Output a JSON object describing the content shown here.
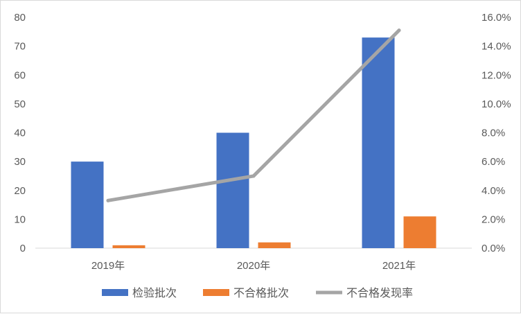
{
  "chart_data": {
    "type": "bar",
    "categories": [
      "2019年",
      "2020年",
      "2021年"
    ],
    "series": [
      {
        "name": "检验批次",
        "kind": "bar",
        "axis": "left",
        "color": "#4472C4",
        "values": [
          30,
          40,
          73
        ]
      },
      {
        "name": "不合格批次",
        "kind": "bar",
        "axis": "left",
        "color": "#ED7D31",
        "values": [
          1,
          2,
          11
        ]
      },
      {
        "name": "不合格发现率",
        "kind": "line",
        "axis": "right",
        "color": "#A5A5A5",
        "values": [
          0.033,
          0.05,
          0.151
        ]
      }
    ],
    "y_left": {
      "min": 0,
      "max": 80,
      "ticks": [
        0,
        10,
        20,
        30,
        40,
        50,
        60,
        70,
        80
      ]
    },
    "y_right": {
      "min": 0,
      "max": 0.16,
      "ticks": [
        0,
        0.02,
        0.04,
        0.06,
        0.08,
        0.1,
        0.12,
        0.14,
        0.16
      ],
      "tick_labels": [
        "0.0%",
        "2.0%",
        "4.0%",
        "6.0%",
        "8.0%",
        "10.0%",
        "12.0%",
        "14.0%",
        "16.0%"
      ]
    },
    "legend": "bottom",
    "grid": false
  }
}
